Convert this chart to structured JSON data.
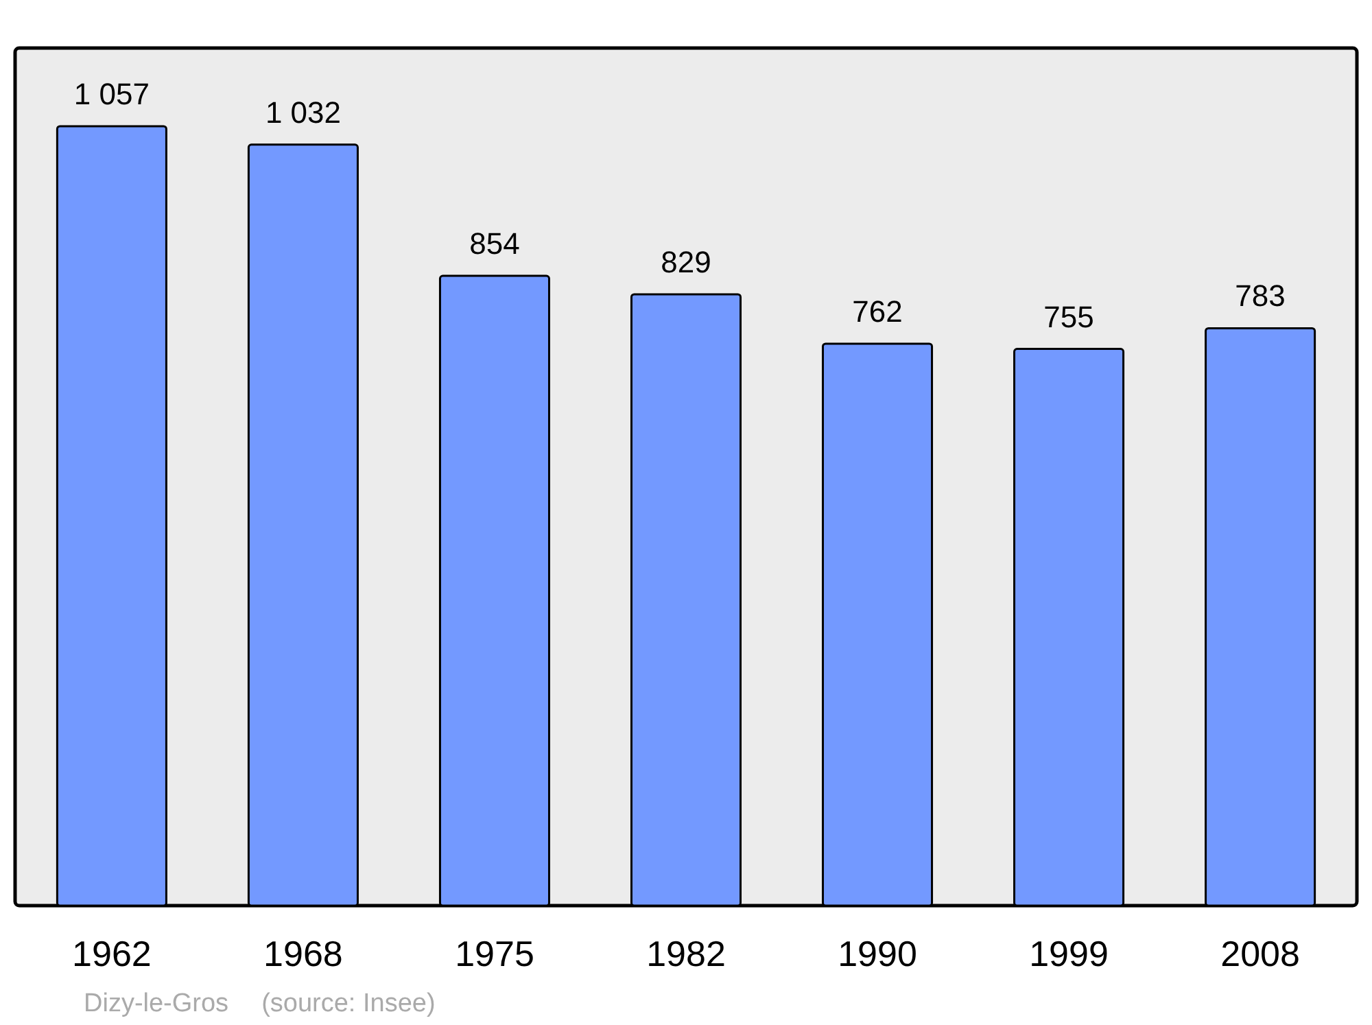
{
  "chart_data": {
    "type": "bar",
    "categories": [
      "1962",
      "1968",
      "1975",
      "1982",
      "1990",
      "1999",
      "2008"
    ],
    "values": [
      1057,
      1032,
      854,
      829,
      762,
      755,
      783
    ],
    "value_labels": [
      "1 057",
      "1 032",
      "854",
      "829",
      "762",
      "755",
      "783"
    ],
    "color": "#7399ff",
    "ylim": [
      0,
      1163
    ],
    "tick_labels": "x",
    "annotations": [
      "Dizy-le-Gros",
      "(source: Insee)"
    ]
  }
}
